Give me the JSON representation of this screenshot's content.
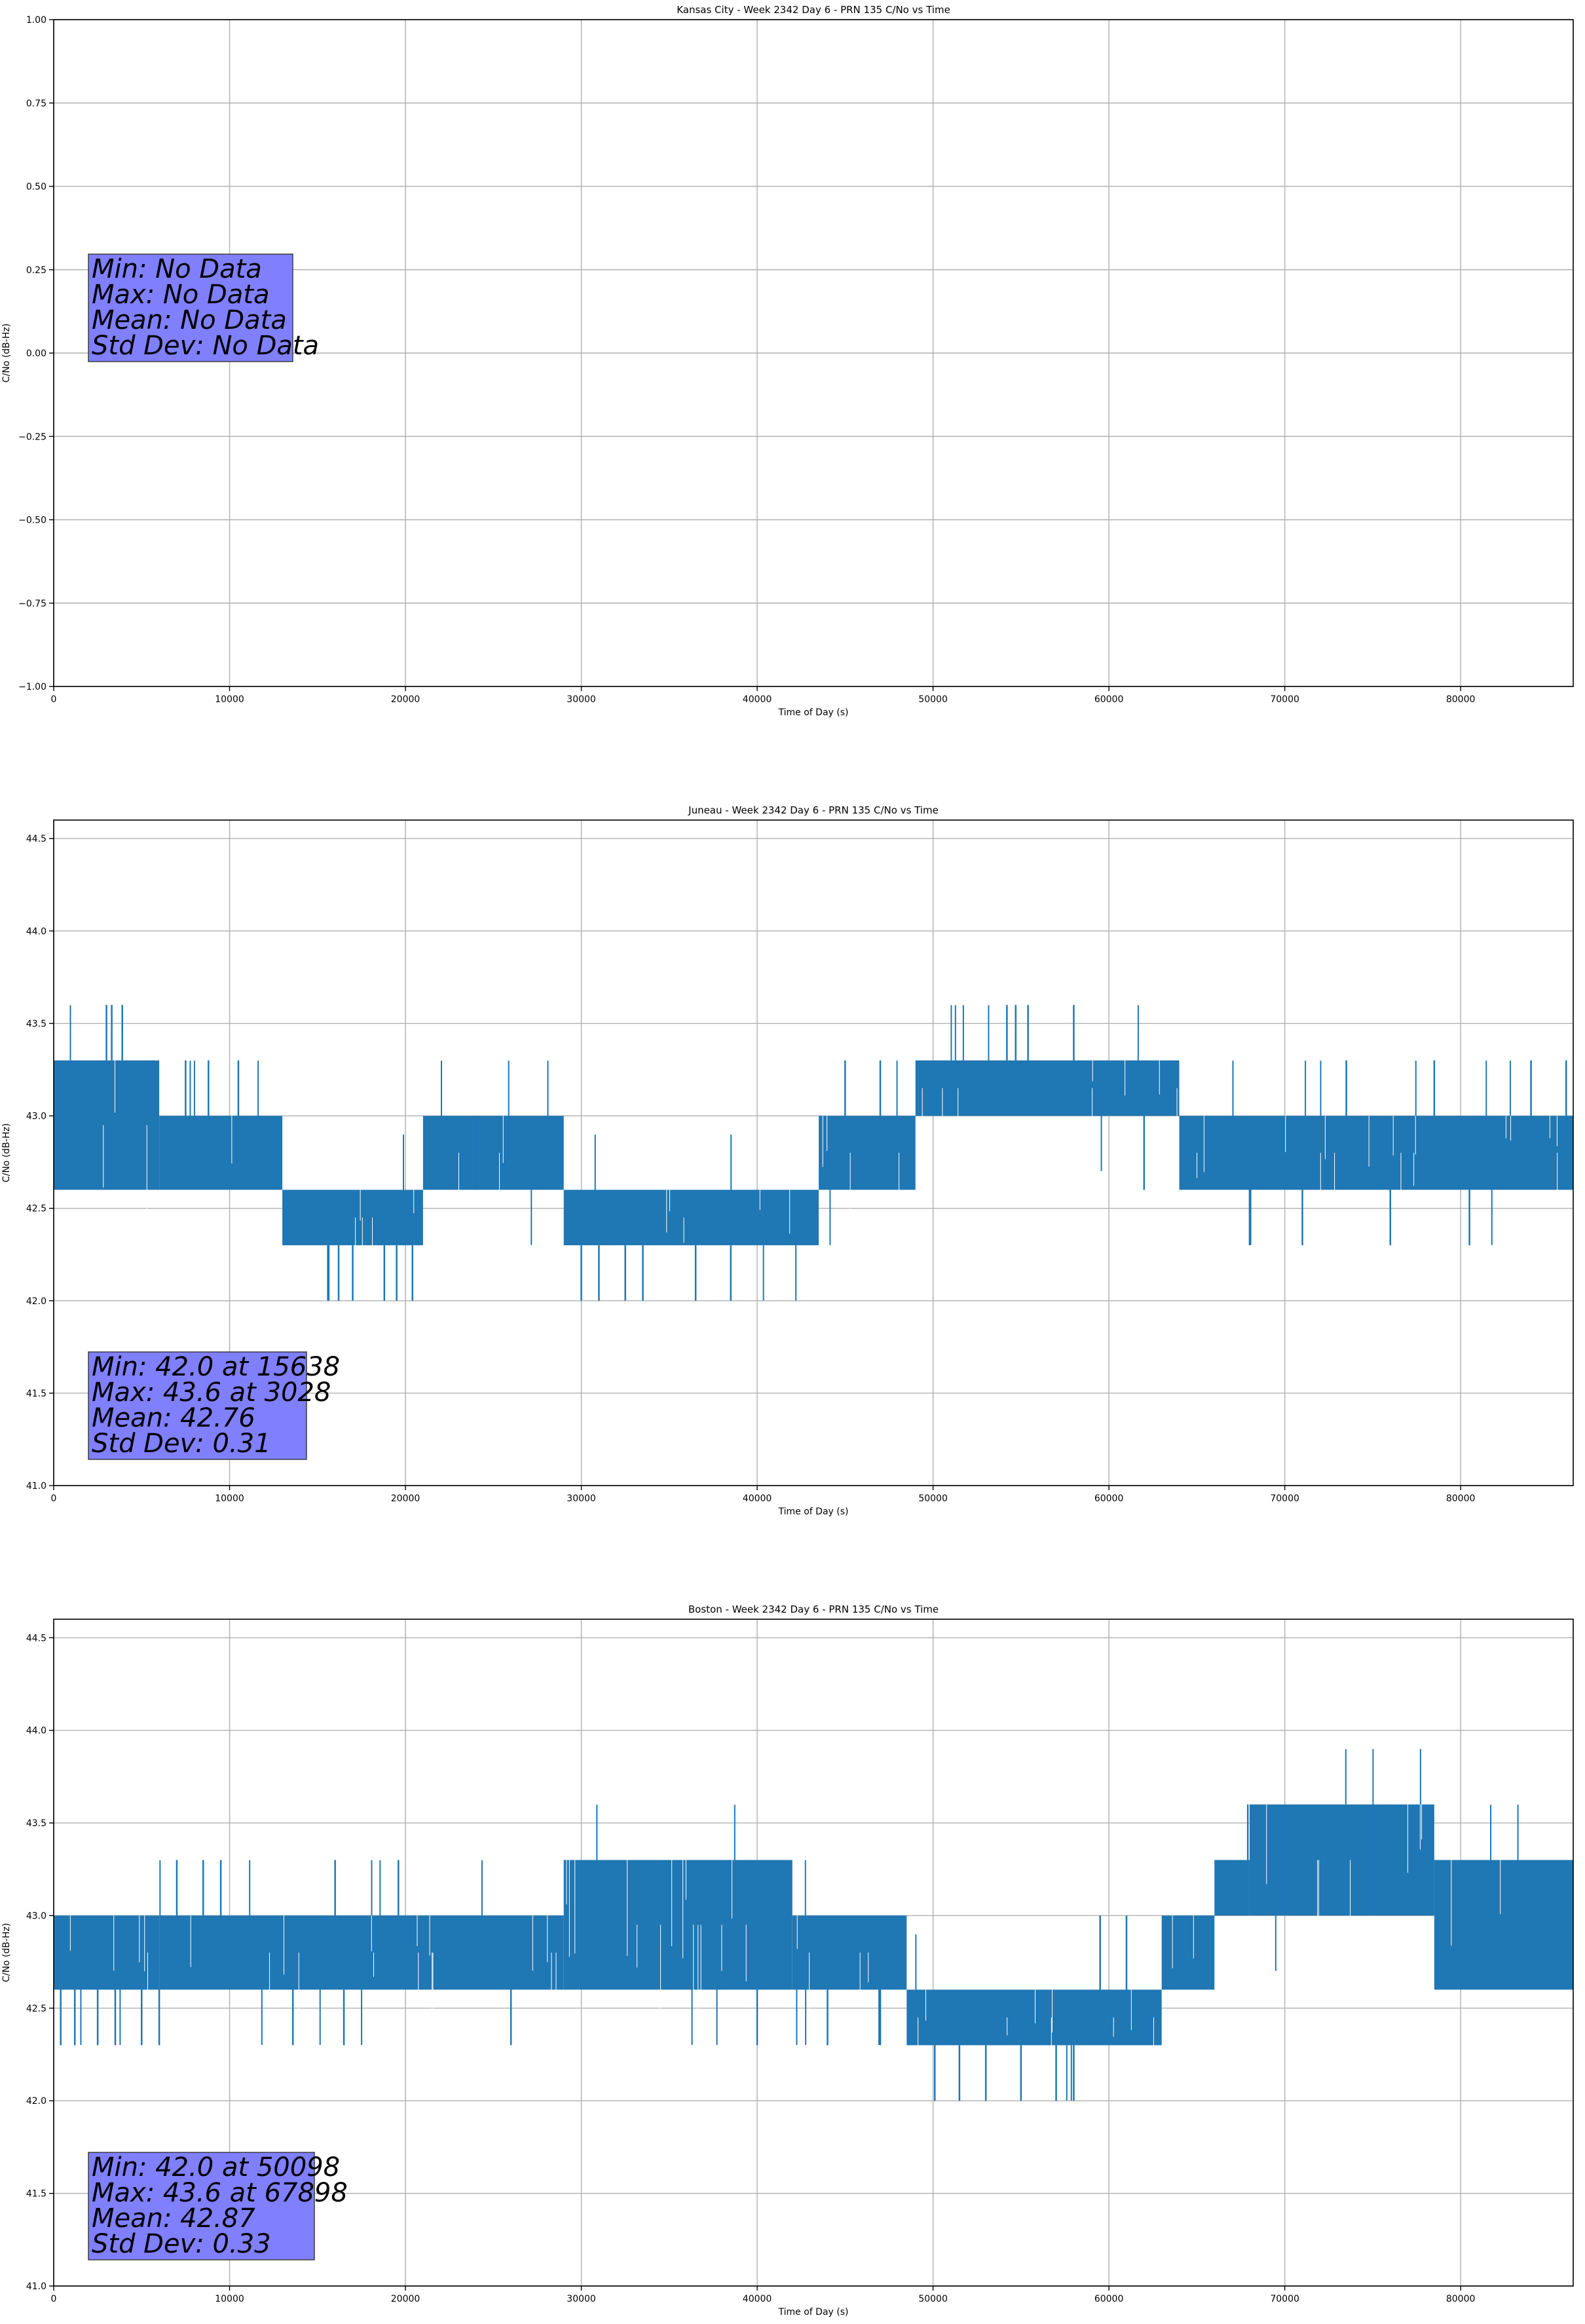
{
  "chart_data": [
    {
      "type": "line",
      "title": "Kansas City - Week 2342 Day 6 - PRN 135 C/No vs Time",
      "xlabel": "Time of Day (s)",
      "ylabel": "C/No (dB-Hz)",
      "xlim": [
        0,
        86400
      ],
      "ylim": [
        -1.0,
        1.0
      ],
      "x_ticks": [
        0,
        10000,
        20000,
        30000,
        40000,
        50000,
        60000,
        70000,
        80000
      ],
      "x_tick_labels": [
        "0",
        "10000",
        "20000",
        "30000",
        "40000",
        "50000",
        "60000",
        "70000",
        "80000"
      ],
      "y_ticks": [
        -1.0,
        -0.75,
        -0.5,
        -0.25,
        0.0,
        0.25,
        0.5,
        0.75,
        1.0
      ],
      "y_tick_labels": [
        "−1.00",
        "−0.75",
        "−0.50",
        "−0.25",
        "0.00",
        "0.25",
        "0.50",
        "0.75",
        "1.00"
      ],
      "grid": true,
      "color": "#1f77b4",
      "stats_box_color": "#8080ff",
      "stats": [
        "Min: No Data",
        "Max: No Data",
        "Mean: No Data",
        "Std Dev: No Data"
      ],
      "series": []
    },
    {
      "type": "line",
      "title": "Juneau - Week 2342 Day 6 - PRN 135 C/No vs Time",
      "xlabel": "Time of Day (s)",
      "ylabel": "C/No (dB-Hz)",
      "xlim": [
        0,
        86400
      ],
      "ylim": [
        41.0,
        44.6
      ],
      "x_ticks": [
        0,
        10000,
        20000,
        30000,
        40000,
        50000,
        60000,
        70000,
        80000
      ],
      "x_tick_labels": [
        "0",
        "10000",
        "20000",
        "30000",
        "40000",
        "50000",
        "60000",
        "70000",
        "80000"
      ],
      "y_ticks": [
        41.0,
        41.5,
        42.0,
        42.5,
        43.0,
        43.5,
        44.0,
        44.5
      ],
      "y_tick_labels": [
        "41.0",
        "41.5",
        "42.0",
        "42.5",
        "43.0",
        "43.5",
        "44.0",
        "44.5"
      ],
      "grid": true,
      "color": "#1f77b4",
      "stats_box_color": "#8080ff",
      "stats": [
        "Min: 42.0 at 15638",
        "Max: 43.6 at 3028",
        "Mean: 42.76",
        "Std Dev: 0.31"
      ],
      "series": [
        {
          "name": "C/No",
          "segments": [
            {
              "x": [
                0,
                6000
              ],
              "lo": 42.6,
              "hi": 43.3
            },
            {
              "x": [
                6000,
                13000
              ],
              "lo": 42.6,
              "hi": 43.0
            },
            {
              "x": [
                13000,
                21000
              ],
              "lo": 42.3,
              "hi": 42.6
            },
            {
              "x": [
                21000,
                29000
              ],
              "lo": 42.6,
              "hi": 43.0
            },
            {
              "x": [
                29000,
                43500
              ],
              "lo": 42.3,
              "hi": 42.6
            },
            {
              "x": [
                43500,
                49000
              ],
              "lo": 42.6,
              "hi": 43.0
            },
            {
              "x": [
                49000,
                64000
              ],
              "lo": 43.0,
              "hi": 43.3
            },
            {
              "x": [
                64000,
                86400
              ],
              "lo": 42.6,
              "hi": 43.0
            }
          ],
          "spikes": [
            {
              "x": 3000,
              "y": 43.6
            },
            {
              "x": 3300,
              "y": 43.6
            },
            {
              "x": 3900,
              "y": 43.6
            },
            {
              "x": 7500,
              "y": 43.3
            },
            {
              "x": 8800,
              "y": 43.3
            },
            {
              "x": 10500,
              "y": 43.3
            },
            {
              "x": 2800,
              "y": 42.6
            },
            {
              "x": 15638,
              "y": 42.0
            },
            {
              "x": 16200,
              "y": 42.0
            },
            {
              "x": 17000,
              "y": 42.0
            },
            {
              "x": 18800,
              "y": 42.0
            },
            {
              "x": 19500,
              "y": 42.0
            },
            {
              "x": 20400,
              "y": 42.0
            },
            {
              "x": 24000,
              "y": 43.0
            },
            {
              "x": 26500,
              "y": 42.6
            },
            {
              "x": 30000,
              "y": 42.0
            },
            {
              "x": 31000,
              "y": 42.0
            },
            {
              "x": 32500,
              "y": 42.0
            },
            {
              "x": 33500,
              "y": 42.0
            },
            {
              "x": 36500,
              "y": 42.0
            },
            {
              "x": 38500,
              "y": 42.0
            },
            {
              "x": 45000,
              "y": 43.3
            },
            {
              "x": 47000,
              "y": 43.3
            },
            {
              "x": 54200,
              "y": 43.6
            },
            {
              "x": 54700,
              "y": 43.6
            },
            {
              "x": 55400,
              "y": 43.6
            },
            {
              "x": 58000,
              "y": 43.6
            },
            {
              "x": 62000,
              "y": 42.6
            },
            {
              "x": 68000,
              "y": 42.3
            },
            {
              "x": 71000,
              "y": 42.3
            },
            {
              "x": 73500,
              "y": 43.3
            },
            {
              "x": 76000,
              "y": 42.3
            },
            {
              "x": 78500,
              "y": 43.3
            },
            {
              "x": 80500,
              "y": 42.3
            },
            {
              "x": 84000,
              "y": 43.3
            },
            {
              "x": 86000,
              "y": 43.3
            }
          ]
        }
      ]
    },
    {
      "type": "line",
      "title": "Boston - Week 2342 Day 6 - PRN 135 C/No vs Time",
      "xlabel": "Time of Day (s)",
      "ylabel": "C/No (dB-Hz)",
      "xlim": [
        0,
        86400
      ],
      "ylim": [
        41.0,
        44.6
      ],
      "x_ticks": [
        0,
        10000,
        20000,
        30000,
        40000,
        50000,
        60000,
        70000,
        80000
      ],
      "x_tick_labels": [
        "0",
        "10000",
        "20000",
        "30000",
        "40000",
        "50000",
        "60000",
        "70000",
        "80000"
      ],
      "y_ticks": [
        41.0,
        41.5,
        42.0,
        42.5,
        43.0,
        43.5,
        44.0,
        44.5
      ],
      "y_tick_labels": [
        "41.0",
        "41.5",
        "42.0",
        "42.5",
        "43.0",
        "43.5",
        "44.0",
        "44.5"
      ],
      "grid": true,
      "color": "#1f77b4",
      "stats_box_color": "#8080ff",
      "stats": [
        "Min: 42.0 at 50098",
        "Max: 43.6 at 67898",
        "Mean: 42.87",
        "Std Dev: 0.33"
      ],
      "series": [
        {
          "name": "C/No",
          "segments": [
            {
              "x": [
                0,
                6000
              ],
              "lo": 42.6,
              "hi": 43.0
            },
            {
              "x": [
                6000,
                29000
              ],
              "lo": 42.6,
              "hi": 43.0
            },
            {
              "x": [
                29000,
                42000
              ],
              "lo": 42.6,
              "hi": 43.3
            },
            {
              "x": [
                42000,
                48500
              ],
              "lo": 42.6,
              "hi": 43.0
            },
            {
              "x": [
                48500,
                63000
              ],
              "lo": 42.3,
              "hi": 42.6
            },
            {
              "x": [
                63000,
                66000
              ],
              "lo": 42.6,
              "hi": 43.0
            },
            {
              "x": [
                66000,
                68000
              ],
              "lo": 43.0,
              "hi": 43.3
            },
            {
              "x": [
                68000,
                78500
              ],
              "lo": 43.0,
              "hi": 43.6
            },
            {
              "x": [
                78500,
                86400
              ],
              "lo": 42.6,
              "hi": 43.3
            }
          ],
          "spikes": [
            {
              "x": 400,
              "y": 42.3
            },
            {
              "x": 1200,
              "y": 42.3
            },
            {
              "x": 2500,
              "y": 42.3
            },
            {
              "x": 3500,
              "y": 42.3
            },
            {
              "x": 5000,
              "y": 42.3
            },
            {
              "x": 6000,
              "y": 42.3
            },
            {
              "x": 7000,
              "y": 43.3
            },
            {
              "x": 8500,
              "y": 43.3
            },
            {
              "x": 9500,
              "y": 43.3
            },
            {
              "x": 13600,
              "y": 42.3
            },
            {
              "x": 16000,
              "y": 43.3
            },
            {
              "x": 16500,
              "y": 42.3
            },
            {
              "x": 19600,
              "y": 43.3
            },
            {
              "x": 23500,
              "y": 43.0
            },
            {
              "x": 26000,
              "y": 42.3
            },
            {
              "x": 40000,
              "y": 42.3
            },
            {
              "x": 44000,
              "y": 42.3
            },
            {
              "x": 47000,
              "y": 42.3
            },
            {
              "x": 50098,
              "y": 42.0
            },
            {
              "x": 51500,
              "y": 42.0
            },
            {
              "x": 53000,
              "y": 42.0
            },
            {
              "x": 55000,
              "y": 42.0
            },
            {
              "x": 57000,
              "y": 42.0
            },
            {
              "x": 58000,
              "y": 42.0
            },
            {
              "x": 59500,
              "y": 43.0
            },
            {
              "x": 61000,
              "y": 43.0
            },
            {
              "x": 67898,
              "y": 43.6
            },
            {
              "x": 70000,
              "y": 43.6
            },
            {
              "x": 75000,
              "y": 43.6
            },
            {
              "x": 83000,
              "y": 42.6
            },
            {
              "x": 85000,
              "y": 42.6
            }
          ]
        }
      ]
    }
  ]
}
